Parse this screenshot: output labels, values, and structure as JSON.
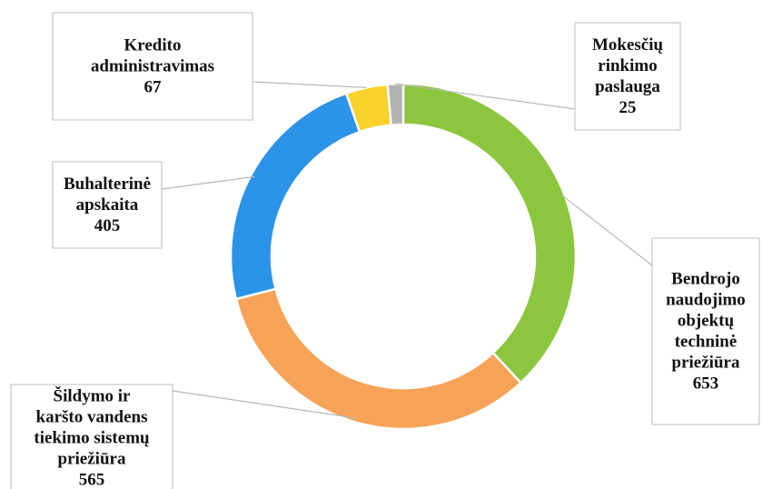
{
  "chart_data": {
    "type": "pie",
    "variant": "donut",
    "title": "",
    "start_angle_deg": 90,
    "direction": "clockwise",
    "legend": "none",
    "slices": [
      {
        "name": "Bendrojo naudojimo objektų techninė priežiūra",
        "label_lines": [
          "Bendrojo",
          "naudojimo",
          "objektų",
          "techninė",
          "priežiūra"
        ],
        "value": 653,
        "value_label": "653",
        "color": "#8cc63e"
      },
      {
        "name": "Šildymo ir karšto vandens tiekimo sistemų priežiūra",
        "label_lines": [
          "Šildymo ir",
          "karšto vandens",
          "tiekimo sistemų",
          "priežiūra"
        ],
        "value": 565,
        "value_label": "565",
        "color": "#f6a358"
      },
      {
        "name": "Buhalterinė apskaita",
        "label_lines": [
          "Buhalterinė",
          "apskaita"
        ],
        "value": 405,
        "value_label": "405",
        "color": "#2b93e8"
      },
      {
        "name": "Kredito administravimas",
        "label_lines": [
          "Kredito",
          "administravimas"
        ],
        "value": 67,
        "value_label": "67",
        "color": "#f9d22c"
      },
      {
        "name": "Mokesčių rinkimo paslauga",
        "label_lines": [
          "Mokesčių",
          "rinkimo",
          "paslauga"
        ],
        "value": 25,
        "value_label": "25",
        "color": "#b2b2b2"
      }
    ]
  }
}
